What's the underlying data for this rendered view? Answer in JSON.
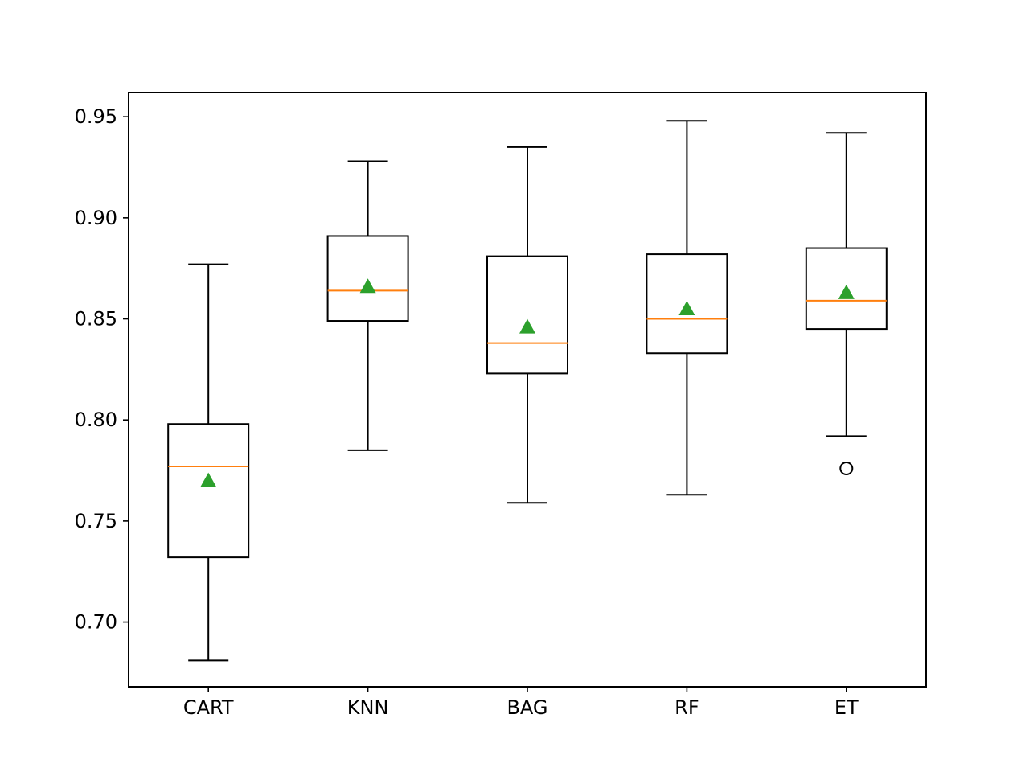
{
  "chart_data": {
    "type": "boxplot",
    "title": "",
    "xlabel": "",
    "ylabel": "",
    "categories": [
      "CART",
      "KNN",
      "BAG",
      "RF",
      "ET"
    ],
    "ylim": [
      0.668,
      0.962
    ],
    "yticks": [
      0.7,
      0.75,
      0.8,
      0.85,
      0.9,
      0.95
    ],
    "ytick_labels": [
      "0.70",
      "0.75",
      "0.80",
      "0.85",
      "0.90",
      "0.95"
    ],
    "grid": false,
    "boxes": [
      {
        "category": "CART",
        "whisker_low": 0.681,
        "q1": 0.732,
        "median": 0.777,
        "q3": 0.798,
        "whisker_high": 0.877,
        "mean": 0.77,
        "outliers": []
      },
      {
        "category": "KNN",
        "whisker_low": 0.785,
        "q1": 0.849,
        "median": 0.864,
        "q3": 0.891,
        "whisker_high": 0.928,
        "mean": 0.866,
        "outliers": []
      },
      {
        "category": "BAG",
        "whisker_low": 0.759,
        "q1": 0.823,
        "median": 0.838,
        "q3": 0.881,
        "whisker_high": 0.935,
        "mean": 0.846,
        "outliers": []
      },
      {
        "category": "RF",
        "whisker_low": 0.763,
        "q1": 0.833,
        "median": 0.85,
        "q3": 0.882,
        "whisker_high": 0.948,
        "mean": 0.855,
        "outliers": []
      },
      {
        "category": "ET",
        "whisker_low": 0.792,
        "q1": 0.845,
        "median": 0.859,
        "q3": 0.885,
        "whisker_high": 0.942,
        "mean": 0.863,
        "outliers": [
          0.776
        ]
      }
    ],
    "colors": {
      "box": "#000000",
      "median": "#ff7f0e",
      "mean": "#2ca02c",
      "outlier": "#000000"
    }
  }
}
